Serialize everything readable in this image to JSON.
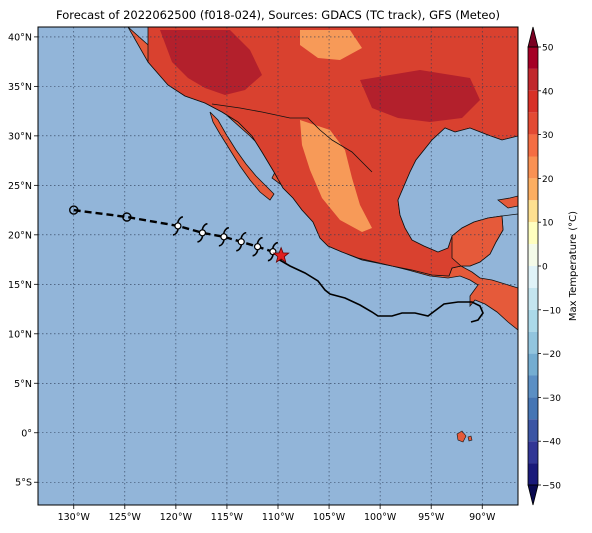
{
  "map": {
    "title": "Forecast of 2022062500 (f018-024), Sources: GDACS (TC track), GFS (Meteo)",
    "lon_range": [
      -133.5,
      -86.5
    ],
    "lat_range": [
      -7.3,
      41
    ],
    "lon_ticks": [
      {
        "value": -130,
        "label": "130°W"
      },
      {
        "value": -125,
        "label": "125°W"
      },
      {
        "value": -120,
        "label": "120°W"
      },
      {
        "value": -115,
        "label": "115°W"
      },
      {
        "value": -110,
        "label": "110°W"
      },
      {
        "value": -105,
        "label": "105°W"
      },
      {
        "value": -100,
        "label": "100°W"
      },
      {
        "value": -95,
        "label": "95°W"
      },
      {
        "value": -90,
        "label": "90°W"
      }
    ],
    "lat_ticks": [
      {
        "value": 40,
        "label": "40°N"
      },
      {
        "value": 35,
        "label": "35°N"
      },
      {
        "value": 30,
        "label": "30°N"
      },
      {
        "value": 25,
        "label": "25°N"
      },
      {
        "value": 20,
        "label": "20°N"
      },
      {
        "value": 15,
        "label": "15°N"
      },
      {
        "value": 10,
        "label": "10°N"
      },
      {
        "value": 5,
        "label": "5°N"
      },
      {
        "value": 0,
        "label": "0°"
      },
      {
        "value": -5,
        "label": "5°S"
      }
    ],
    "colors": {
      "ocean": "#92b5d9",
      "grid": "#2b3a55",
      "track": "#000000",
      "star": "#e02020"
    },
    "track_past": [
      {
        "lon": -130.0,
        "lat": 22.5,
        "marker": "circle"
      },
      {
        "lon": -124.8,
        "lat": 21.8,
        "marker": "circle"
      }
    ],
    "track_forecast": [
      {
        "lon": -119.8,
        "lat": 20.9
      },
      {
        "lon": -117.4,
        "lat": 20.2
      },
      {
        "lon": -115.3,
        "lat": 19.8
      },
      {
        "lon": -113.6,
        "lat": 19.3
      },
      {
        "lon": -112.0,
        "lat": 18.8
      },
      {
        "lon": -110.5,
        "lat": 18.3
      }
    ],
    "current_position": {
      "lon": -109.7,
      "lat": 17.9
    },
    "forecast_symbol": "hurricane-symbol"
  },
  "colorbar": {
    "label": "Max Temperature (°C)",
    "min": -50,
    "max": 50,
    "ticks": [
      {
        "value": 50,
        "label": "50"
      },
      {
        "value": 40,
        "label": "40"
      },
      {
        "value": 30,
        "label": "30"
      },
      {
        "value": 20,
        "label": "20"
      },
      {
        "value": 10,
        "label": "10"
      },
      {
        "value": 0,
        "label": "0"
      },
      {
        "value": -10,
        "label": "−10"
      },
      {
        "value": -20,
        "label": "−20"
      },
      {
        "value": -30,
        "label": "−30"
      },
      {
        "value": -40,
        "label": "−40"
      },
      {
        "value": -50,
        "label": "−50"
      }
    ],
    "bands": [
      {
        "from": 45,
        "to": 50,
        "color": "#a50026"
      },
      {
        "from": 40,
        "to": 45,
        "color": "#c1272d"
      },
      {
        "from": 35,
        "to": 40,
        "color": "#d73027"
      },
      {
        "from": 30,
        "to": 35,
        "color": "#e34a33"
      },
      {
        "from": 25,
        "to": 30,
        "color": "#f46d43"
      },
      {
        "from": 20,
        "to": 25,
        "color": "#f99153"
      },
      {
        "from": 15,
        "to": 20,
        "color": "#fdae61"
      },
      {
        "from": 10,
        "to": 15,
        "color": "#fee090"
      },
      {
        "from": 5,
        "to": 10,
        "color": "#ffffbf"
      },
      {
        "from": 0,
        "to": 5,
        "color": "#f4fbe9"
      },
      {
        "from": -5,
        "to": 0,
        "color": "#e0f3f8"
      },
      {
        "from": -10,
        "to": -5,
        "color": "#c4e5ef"
      },
      {
        "from": -15,
        "to": -10,
        "color": "#abd9e9"
      },
      {
        "from": -20,
        "to": -15,
        "color": "#92c5de"
      },
      {
        "from": -25,
        "to": -20,
        "color": "#74add1"
      },
      {
        "from": -30,
        "to": -25,
        "color": "#5b8fc4"
      },
      {
        "from": -35,
        "to": -30,
        "color": "#4575b4"
      },
      {
        "from": -40,
        "to": -35,
        "color": "#3b55a4"
      },
      {
        "from": -45,
        "to": -40,
        "color": "#313695"
      },
      {
        "from": -50,
        "to": -45,
        "color": "#1a1a7a"
      }
    ],
    "over_color": "#7a0022",
    "under_color": "#0a0a50"
  }
}
